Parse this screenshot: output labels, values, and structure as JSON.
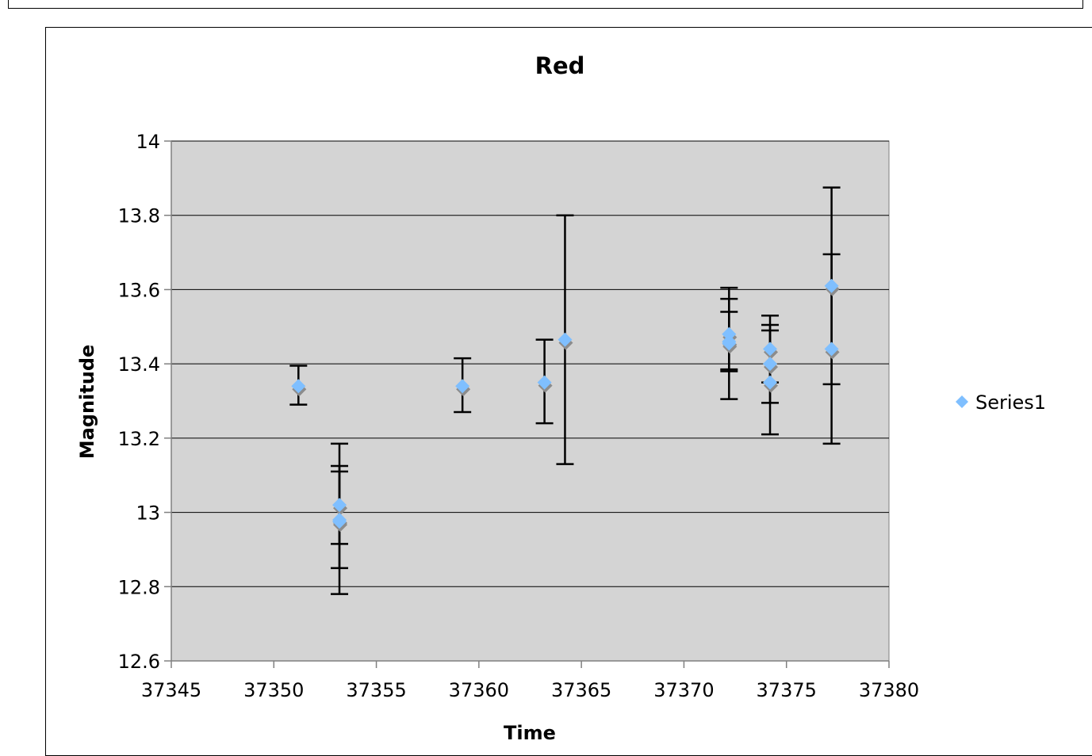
{
  "chart_data": {
    "type": "scatter",
    "title": "Red",
    "xlabel": "Time",
    "ylabel": "Magnitude",
    "xlim": [
      37345,
      37380
    ],
    "ylim": [
      12.6,
      14
    ],
    "xticks": [
      37345,
      37350,
      37355,
      37360,
      37365,
      37370,
      37375,
      37380
    ],
    "yticks": [
      12.6,
      12.8,
      13,
      13.2,
      13.4,
      13.6,
      13.8,
      14
    ],
    "grid": true,
    "legend_position": "right",
    "colors": {
      "plot_area": "#d4d4d4",
      "marker": "#7fbfff",
      "marker_shadow": "#8c8c8c",
      "error_bar": "#000000",
      "gridline": "#000000"
    },
    "series": [
      {
        "name": "Series1",
        "points": [
          {
            "x": 37351.2,
            "y": 13.34,
            "err_low": 13.29,
            "err_high": 13.395
          },
          {
            "x": 37353.2,
            "y": 13.02,
            "err_low": 12.915,
            "err_high": 13.125
          },
          {
            "x": 37353.2,
            "y": 12.98,
            "err_low": 12.85,
            "err_high": 13.11
          },
          {
            "x": 37353.2,
            "y": 12.975,
            "err_low": 12.78,
            "err_high": 13.185
          },
          {
            "x": 37359.2,
            "y": 13.34,
            "err_low": 13.27,
            "err_high": 13.415
          },
          {
            "x": 37363.2,
            "y": 13.35,
            "err_low": 13.24,
            "err_high": 13.465
          },
          {
            "x": 37364.2,
            "y": 13.465,
            "err_low": 13.13,
            "err_high": 13.8
          },
          {
            "x": 37372.2,
            "y": 13.48,
            "err_low": 13.385,
            "err_high": 13.575
          },
          {
            "x": 37372.2,
            "y": 13.46,
            "err_low": 13.38,
            "err_high": 13.54
          },
          {
            "x": 37372.2,
            "y": 13.455,
            "err_low": 13.305,
            "err_high": 13.605
          },
          {
            "x": 37374.2,
            "y": 13.44,
            "err_low": 13.35,
            "err_high": 13.53
          },
          {
            "x": 37374.2,
            "y": 13.4,
            "err_low": 13.295,
            "err_high": 13.505
          },
          {
            "x": 37374.2,
            "y": 13.35,
            "err_low": 13.21,
            "err_high": 13.49
          },
          {
            "x": 37377.2,
            "y": 13.61,
            "err_low": 13.345,
            "err_high": 13.875
          },
          {
            "x": 37377.2,
            "y": 13.44,
            "err_low": 13.185,
            "err_high": 13.695
          }
        ]
      }
    ]
  }
}
